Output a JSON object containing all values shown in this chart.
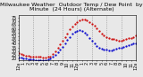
{
  "title": "Milwaukee Weather  Outdoor Temp / Dew Point  by Minute  (24 Hours) (Alternate)",
  "bg_color": "#e8e8e8",
  "plot_bg": "#e8e8e8",
  "grid_color": "#888888",
  "temp_color": "#cc0000",
  "dew_color": "#0000cc",
  "xlim": [
    0,
    1440
  ],
  "ylim": [
    18,
    78
  ],
  "yticks": [
    20,
    25,
    30,
    35,
    40,
    45,
    50,
    55,
    60,
    65,
    70,
    75
  ],
  "ytick_labels": [
    "20",
    "25",
    "30",
    "35",
    "40",
    "45",
    "50",
    "55",
    "60",
    "65",
    "70",
    "75"
  ],
  "xtick_positions": [
    0,
    60,
    120,
    180,
    240,
    300,
    360,
    420,
    480,
    540,
    600,
    660,
    720,
    780,
    840,
    900,
    960,
    1020,
    1080,
    1140,
    1200,
    1260,
    1320,
    1380,
    1440
  ],
  "xtick_labels": [
    "12a",
    "1",
    "2",
    "3",
    "4",
    "5",
    "6",
    "7",
    "8",
    "9",
    "10",
    "11",
    "12p",
    "1",
    "2",
    "3",
    "4",
    "5",
    "6",
    "7",
    "8",
    "9",
    "10",
    "11",
    "12a"
  ],
  "temp_x": [
    0,
    30,
    60,
    90,
    120,
    150,
    180,
    210,
    240,
    270,
    300,
    330,
    360,
    390,
    420,
    450,
    480,
    510,
    540,
    570,
    600,
    630,
    660,
    690,
    720,
    750,
    780,
    810,
    840,
    870,
    900,
    930,
    960,
    990,
    1020,
    1050,
    1080,
    1110,
    1140,
    1170,
    1200,
    1230,
    1260,
    1290,
    1320,
    1350,
    1380,
    1410,
    1440
  ],
  "temp_y": [
    27,
    26,
    25,
    24,
    24,
    23,
    23,
    22,
    22,
    22,
    21,
    21,
    22,
    23,
    26,
    30,
    34,
    39,
    44,
    49,
    54,
    59,
    63,
    66,
    69,
    71,
    72,
    72,
    71,
    69,
    67,
    64,
    61,
    57,
    54,
    51,
    49,
    47,
    46,
    46,
    45,
    44,
    44,
    45,
    46,
    47,
    48,
    49,
    51
  ],
  "dew_x": [
    0,
    30,
    60,
    90,
    120,
    150,
    180,
    210,
    240,
    270,
    300,
    330,
    360,
    390,
    420,
    450,
    480,
    510,
    540,
    570,
    600,
    630,
    660,
    690,
    720,
    750,
    780,
    810,
    840,
    870,
    900,
    930,
    960,
    990,
    1020,
    1050,
    1080,
    1110,
    1140,
    1170,
    1200,
    1230,
    1260,
    1290,
    1320,
    1350,
    1380,
    1410,
    1440
  ],
  "dew_y": [
    21,
    21,
    20,
    20,
    19,
    19,
    19,
    18,
    18,
    18,
    18,
    18,
    19,
    20,
    22,
    25,
    28,
    32,
    36,
    40,
    45,
    49,
    53,
    56,
    57,
    58,
    57,
    55,
    52,
    48,
    44,
    40,
    37,
    35,
    33,
    32,
    32,
    31,
    31,
    32,
    33,
    34,
    35,
    36,
    37,
    38,
    39,
    40,
    41
  ],
  "title_fontsize": 4.5,
  "tick_fontsize": 3.5,
  "markersize": 1.2,
  "vgrid_positions": [
    0,
    180,
    360,
    540,
    720,
    900,
    1080,
    1260,
    1440
  ]
}
